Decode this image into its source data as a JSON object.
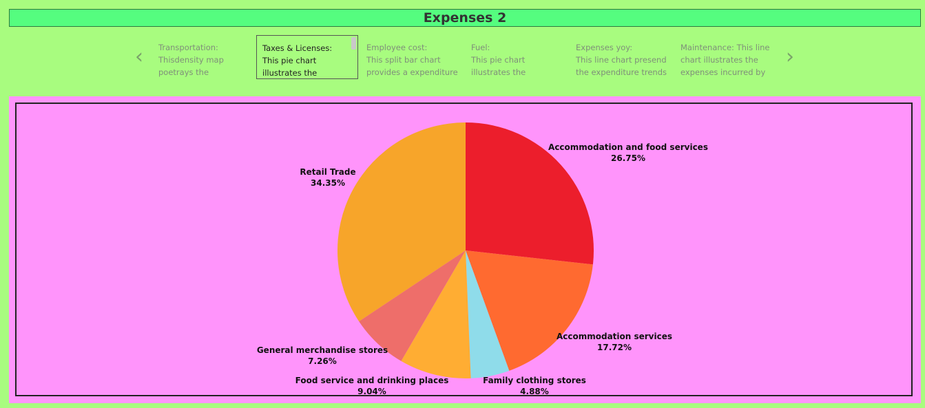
{
  "dashboard": {
    "title": "Expenses 2"
  },
  "story": {
    "prev_icon": "chevron-left-icon",
    "next_icon": "chevron-right-icon",
    "points": [
      {
        "lines": [
          "Transportation:",
          "Thisdensity map",
          "poetrays the"
        ],
        "active": false
      },
      {
        "lines": [
          "Taxes & Licenses:",
          "This pie chart",
          "illustrates the"
        ],
        "active": true
      },
      {
        "lines": [
          "Employee cost:",
          "This split bar chart",
          "provides a expenditure"
        ],
        "active": false
      },
      {
        "lines": [
          "Fuel:",
          "This pie chart",
          "illustrates the"
        ],
        "active": false
      },
      {
        "lines": [
          "Expenses yoy:",
          "This line chart presend",
          "the expenditure trends"
        ],
        "active": false
      },
      {
        "lines": [
          "Maintenance: This line",
          "chart illustrates the",
          "expenses incurred by"
        ],
        "active": false
      }
    ]
  },
  "colors": {
    "page_background": "#a8fc7f",
    "title_background": "#55fd7f",
    "chart_background": "#ff94fb"
  },
  "chart_data": {
    "type": "pie",
    "start_angle_deg": 0,
    "direction": "clockwise",
    "slices": [
      {
        "label": "Accommodation and food services",
        "value": 26.75,
        "display": "26.75%",
        "color": "#ec1e2c"
      },
      {
        "label": "Accommodation services",
        "value": 17.72,
        "display": "17.72%",
        "color": "#ff6a30"
      },
      {
        "label": "Family clothing stores",
        "value": 4.88,
        "display": "4.88%",
        "color": "#8fdcea"
      },
      {
        "label": "Food service and drinking places",
        "value": 9.04,
        "display": "9.04%",
        "color": "#ffad33"
      },
      {
        "label": "General merchandise stores",
        "value": 7.26,
        "display": "7.26%",
        "color": "#ee6e6a"
      },
      {
        "label": "Retail Trade",
        "value": 34.35,
        "display": "34.35%",
        "color": "#f7a52a"
      }
    ]
  }
}
